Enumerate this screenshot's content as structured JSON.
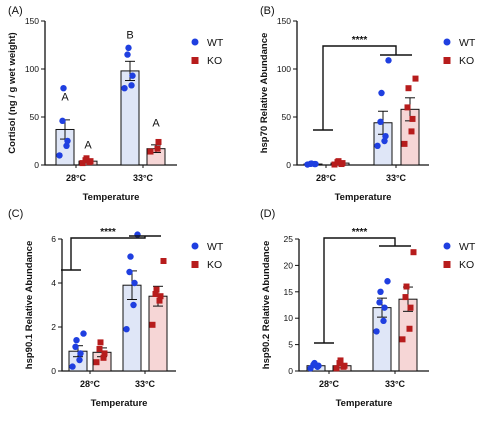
{
  "colors": {
    "wt": "#1f3fe0",
    "ko": "#b71c1c",
    "wt_fill": "#dfe6f7",
    "ko_fill": "#f6d6d6"
  },
  "legend": {
    "wt": "WT",
    "ko": "KO"
  },
  "chart_data": [
    {
      "type": "bar",
      "panel": "(A)",
      "ylabel": "Cortisol (ng / g wet weight)",
      "xlabel": "Temperature",
      "categories": [
        "28°C",
        "33°C"
      ],
      "ylim": [
        0,
        150
      ],
      "yticks": [
        0,
        50,
        100,
        150
      ],
      "series": [
        {
          "name": "WT",
          "values": [
            37,
            98
          ],
          "err": [
            10,
            10
          ],
          "points": [
            [
              10,
              20,
              25,
              46,
              80
            ],
            [
              80,
              83,
              93,
              115,
              122
            ]
          ]
        },
        {
          "name": "KO",
          "values": [
            4,
            17
          ],
          "err": [
            2,
            4
          ],
          "points": [
            [
              2,
              3,
              4,
              5,
              7
            ],
            [
              14,
              17,
              24
            ]
          ]
        }
      ],
      "annotations": [
        {
          "series": 0,
          "category": 0,
          "text": "A",
          "y": 67
        },
        {
          "series": 1,
          "category": 0,
          "text": "A",
          "y": 17
        },
        {
          "series": 0,
          "category": 1,
          "text": "B",
          "y": 132
        },
        {
          "series": 1,
          "category": 1,
          "text": "A",
          "y": 40
        }
      ]
    },
    {
      "type": "bar",
      "panel": "(B)",
      "ylabel": "hsp70 Relative Abundance",
      "xlabel": "Temperature",
      "categories": [
        "28°C",
        "33°C"
      ],
      "ylim": [
        0,
        150
      ],
      "yticks": [
        0,
        50,
        100,
        150
      ],
      "significance": "****",
      "series": [
        {
          "name": "WT",
          "values": [
            1,
            44
          ],
          "err": [
            0.5,
            12
          ],
          "points": [
            [
              0.5,
              1,
              1,
              1.2,
              1.5
            ],
            [
              20,
              25,
              30,
              45,
              75,
              109
            ]
          ]
        },
        {
          "name": "KO",
          "values": [
            2,
            58
          ],
          "err": [
            1,
            12
          ],
          "points": [
            [
              0.5,
              1,
              2,
              3,
              4
            ],
            [
              22,
              35,
              48,
              60,
              80,
              90
            ]
          ]
        }
      ]
    },
    {
      "type": "bar",
      "panel": "(C)",
      "ylabel": "hsp90.1 Relative Abundance",
      "xlabel": "Temperature",
      "categories": [
        "28°C",
        "33°C"
      ],
      "ylim": [
        0,
        6
      ],
      "yticks": [
        0,
        2,
        4,
        6
      ],
      "significance": "****",
      "series": [
        {
          "name": "WT",
          "values": [
            0.9,
            3.9
          ],
          "err": [
            0.25,
            0.65
          ],
          "points": [
            [
              0.2,
              0.5,
              0.8,
              1.1,
              1.4,
              1.7
            ],
            [
              1.9,
              3.0,
              4.0,
              4.5,
              5.2,
              6.2
            ]
          ]
        },
        {
          "name": "KO",
          "values": [
            0.85,
            3.4
          ],
          "err": [
            0.2,
            0.45
          ],
          "points": [
            [
              0.4,
              0.6,
              0.8,
              1.0,
              1.3
            ],
            [
              2.1,
              3.2,
              3.4,
              3.5,
              3.7,
              5.0
            ]
          ]
        }
      ]
    },
    {
      "type": "bar",
      "panel": "(D)",
      "ylabel": "hsp90.2 Relative Abundance",
      "xlabel": "Temperature",
      "categories": [
        "28°C",
        "33°C"
      ],
      "ylim": [
        0,
        25
      ],
      "yticks": [
        0,
        5,
        10,
        15,
        20,
        25
      ],
      "significance": "****",
      "series": [
        {
          "name": "WT",
          "values": [
            1,
            12
          ],
          "err": [
            0.3,
            1.8
          ],
          "points": [
            [
              0.5,
              0.8,
              1.0,
              1.2,
              1.5
            ],
            [
              7.5,
              9.5,
              12,
              13,
              15,
              17
            ]
          ]
        },
        {
          "name": "KO",
          "values": [
            1,
            13.6
          ],
          "err": [
            0.4,
            2.3
          ],
          "points": [
            [
              0.5,
              0.8,
              1.0,
              1.5,
              2.0
            ],
            [
              6,
              8,
              12,
              14,
              16,
              22.5
            ]
          ]
        }
      ]
    }
  ]
}
